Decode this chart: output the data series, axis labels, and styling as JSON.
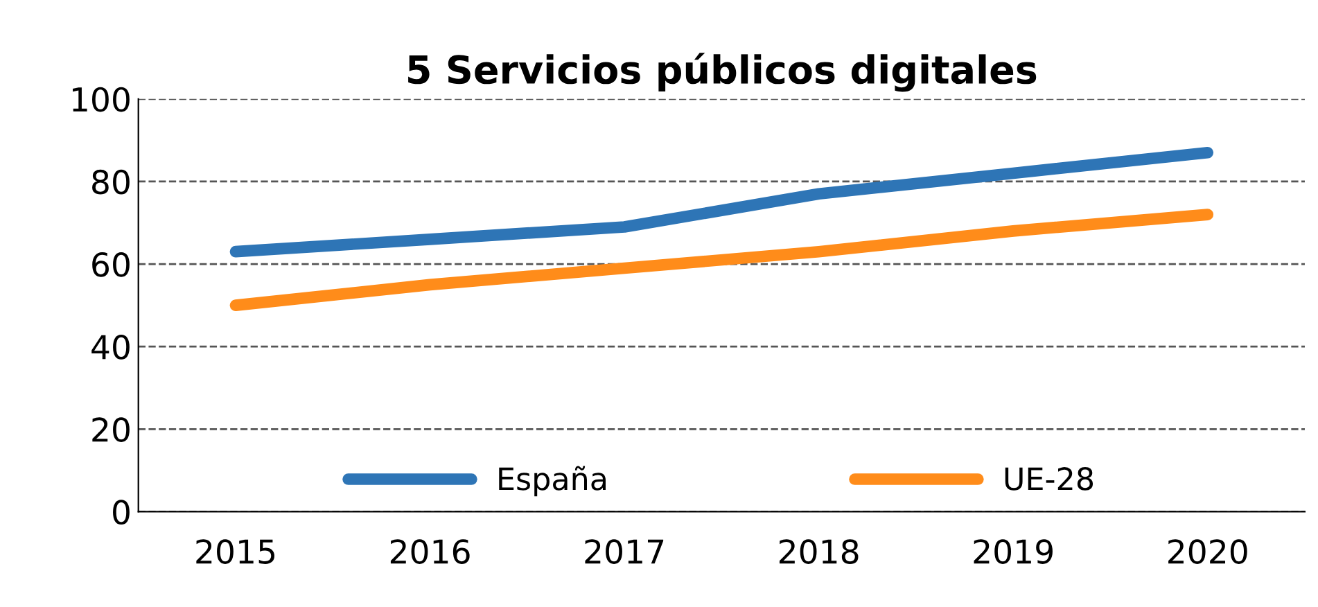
{
  "chart_data": {
    "type": "line",
    "title": "5 Servicios públicos digitales",
    "categories": [
      "2015",
      "2016",
      "2017",
      "2018",
      "2019",
      "2020"
    ],
    "series": [
      {
        "name": "España",
        "color": "#2e75b6",
        "values": [
          63,
          66,
          69,
          77,
          82,
          87
        ]
      },
      {
        "name": "UE-28",
        "color": "#ff8c1a",
        "values": [
          50,
          55,
          59,
          63,
          68,
          72
        ]
      }
    ],
    "ylim": [
      0,
      100
    ],
    "yticks": [
      0,
      20,
      40,
      60,
      80,
      100
    ],
    "grid": "y",
    "legend": "bottom",
    "line_style": "solid",
    "marker": "none"
  }
}
